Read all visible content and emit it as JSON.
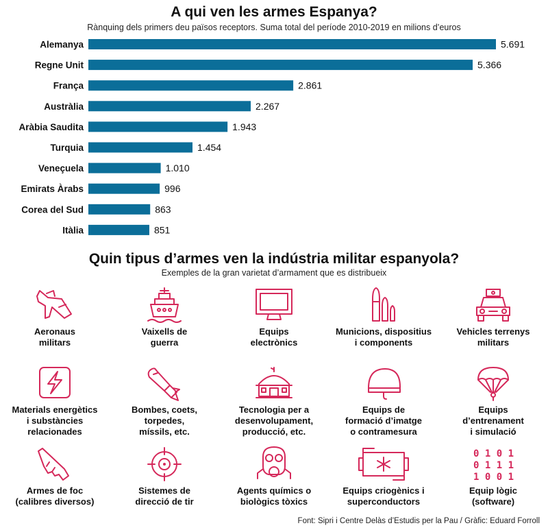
{
  "chart_data": {
    "type": "bar",
    "orientation": "horizontal",
    "title": "A qui ven les armes Espanya?",
    "subtitle": "Rànquing dels primers deu països receptors. Suma total del període 2010-2019 en milions d’euros",
    "categories": [
      "Alemanya",
      "Regne Unit",
      "França",
      "Austràlia",
      "Aràbia Saudita",
      "Turquia",
      "Veneçuela",
      "Emirats Àrabs",
      "Corea del Sud",
      "Itàlia"
    ],
    "values": [
      5691,
      5366,
      2861,
      2267,
      1943,
      1454,
      1010,
      996,
      863,
      851
    ],
    "value_labels": [
      "5.691",
      "5.366",
      "2.861",
      "2.267",
      "1.943",
      "1.454",
      "1.010",
      "996",
      "863",
      "851"
    ],
    "xlim": [
      0,
      5691
    ],
    "grid": false,
    "legend": "none",
    "bar_color": "#0b6e99"
  },
  "weapons": {
    "title": "Quin tipus d’armes ven la indústria militar espanyola?",
    "subtitle": "Exemples de la gran varietat d’armament que es distribueix",
    "icon_color": "#d5285a",
    "items": [
      {
        "label": "Aeronaus\nmilitars",
        "icon": "military-jet-icon"
      },
      {
        "label": "Vaixells de\nguerra",
        "icon": "warship-icon"
      },
      {
        "label": "Equips\nelectrònics",
        "icon": "monitor-icon"
      },
      {
        "label": "Municions, dispositius\ni components",
        "icon": "ammunition-icon"
      },
      {
        "label": "Vehicles terrenys\nmilitars",
        "icon": "military-vehicle-icon"
      },
      {
        "label": "Materials energètics\ni substàncies\nrelacionades",
        "icon": "lightning-icon"
      },
      {
        "label": "Bombes, coets,\ntorpedes,\nmíssils, etc.",
        "icon": "bomb-icon"
      },
      {
        "label": "Tecnologia per a\ndesenvolupament,\nproducció, etc.",
        "icon": "factory-icon"
      },
      {
        "label": "Equips de\nformació d’imatge\no contramesura",
        "icon": "helmet-icon"
      },
      {
        "label": "Equips\nd’entrenament\ni simulació",
        "icon": "parachute-icon"
      },
      {
        "label": "Armes de foc\n(calibres diversos)",
        "icon": "rifle-icon"
      },
      {
        "label": "Sistemes de\ndirecció de tir",
        "icon": "crosshair-icon"
      },
      {
        "label": "Agents químics o\nbiològics tòxics",
        "icon": "gas-mask-icon"
      },
      {
        "label": "Equips criogènics i\nsuperconductors",
        "icon": "cryogenic-icon"
      },
      {
        "label": "Equip lògic\n(software)",
        "icon": "binary-code-icon"
      }
    ],
    "binary_rows": [
      "0 1 0 1",
      "0 1 1 1",
      "1 0 0 1"
    ]
  },
  "source": "Font: Sipri i Centre Delàs d’Estudis per la Pau / Gràfic: Eduard Forroll"
}
